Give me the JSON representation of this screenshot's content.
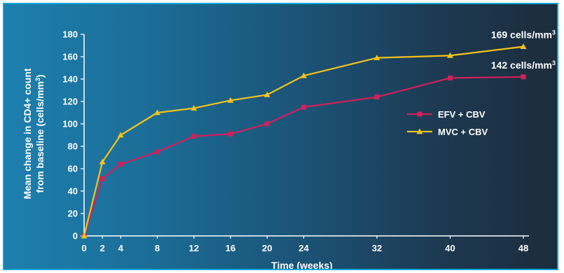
{
  "chart_data": {
    "type": "line",
    "xlabel": "Time (weeks)",
    "ylabel_line1": "Mean change in CD4+ count",
    "ylabel_line2_prefix": "from baseline (cells/mm",
    "ylabel_line2_sup": "3",
    "ylabel_line2_suffix": ")",
    "x": [
      0,
      2,
      4,
      8,
      12,
      16,
      20,
      24,
      32,
      40,
      48
    ],
    "x_ticks": [
      "0",
      "2",
      "4",
      "8",
      "12",
      "16",
      "20",
      "24",
      "32",
      "40",
      "48"
    ],
    "y_ticks": [
      "0",
      "20",
      "40",
      "60",
      "80",
      "100",
      "120",
      "140",
      "160",
      "180"
    ],
    "ylim": [
      0,
      180
    ],
    "series": [
      {
        "name": "EFV + CBV",
        "color": "#d0205a",
        "marker": "square",
        "values": [
          0,
          51,
          64,
          75,
          89,
          91,
          100,
          115,
          124,
          141,
          142
        ],
        "end_label": "142 cells/mm",
        "end_label_sup": "3"
      },
      {
        "name": "MVC + CBV",
        "color": "#f3c21a",
        "marker": "triangle",
        "values": [
          0,
          66,
          90,
          110,
          114,
          121,
          126,
          143,
          159,
          161,
          169
        ],
        "end_label": "169 cells/mm",
        "end_label_sup": "3"
      }
    ],
    "legend_position": "right",
    "grid": false
  }
}
